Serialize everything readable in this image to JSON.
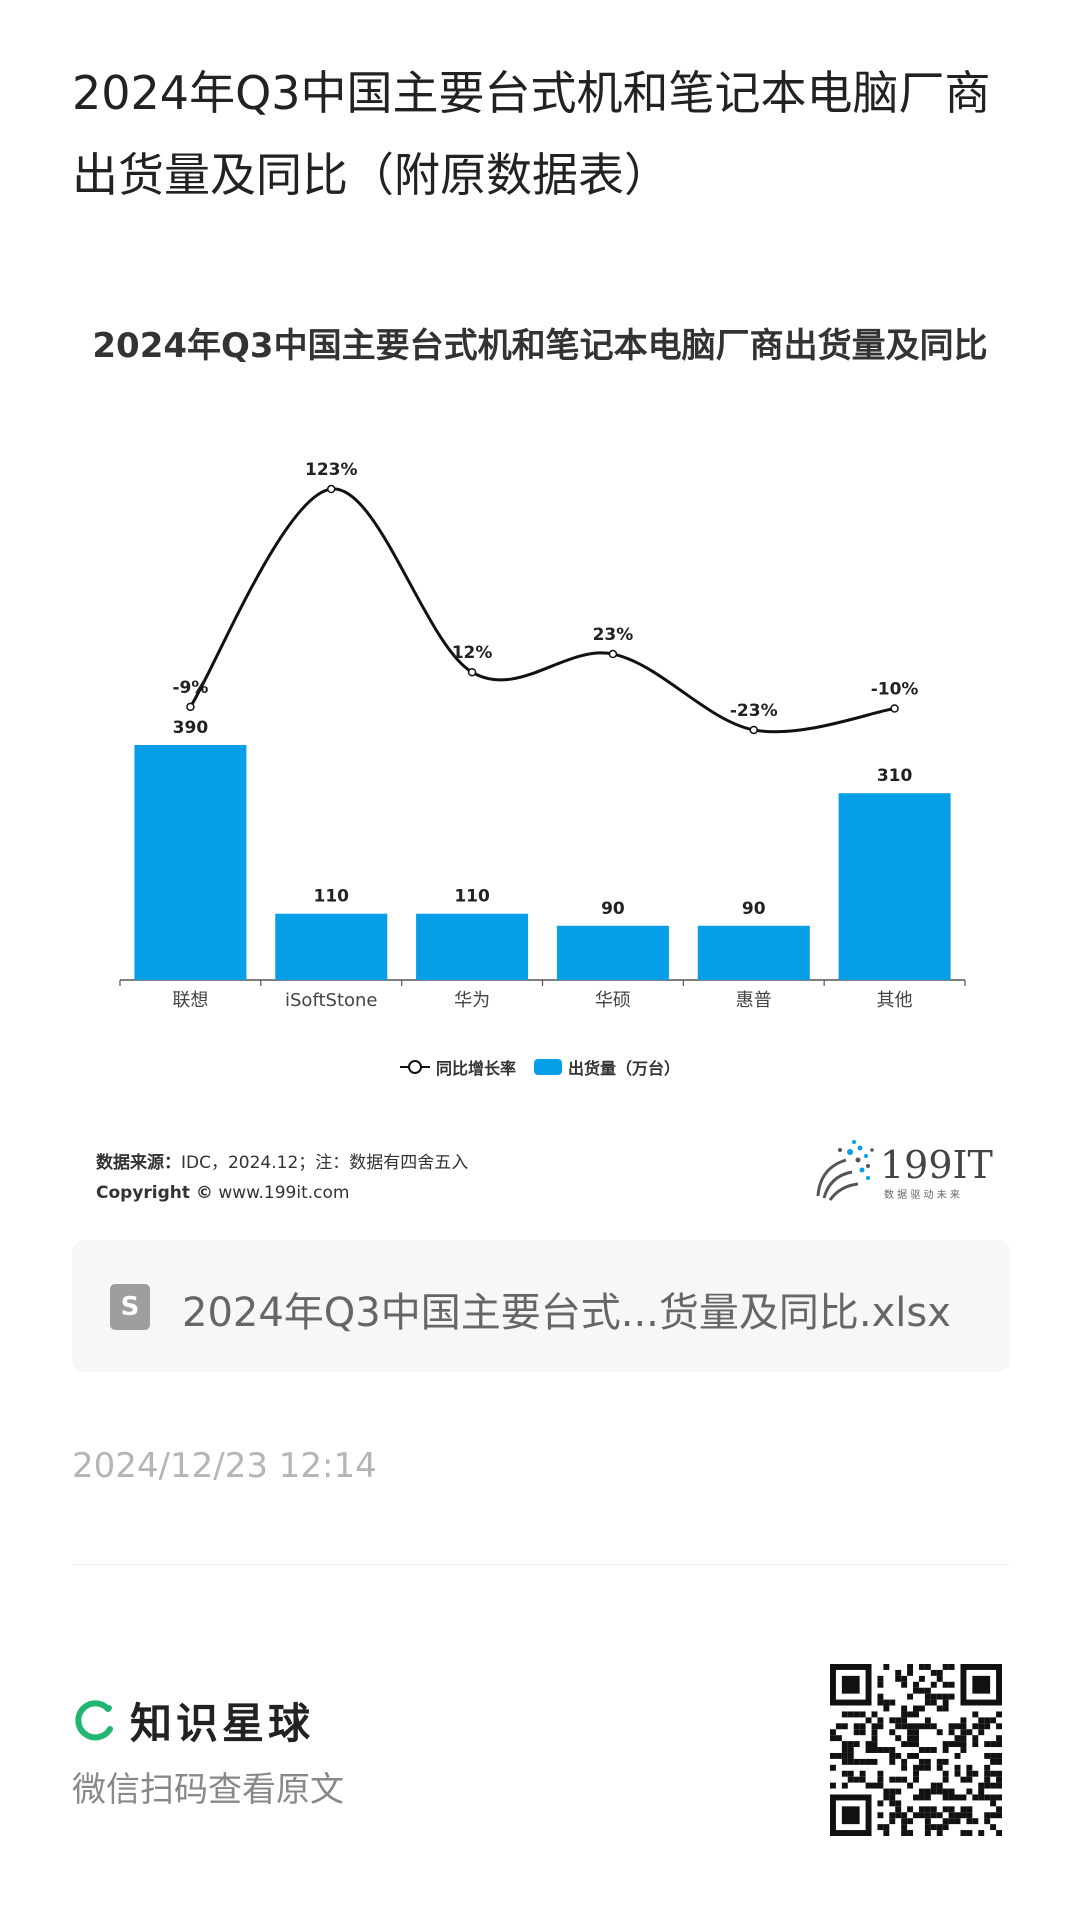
{
  "post": {
    "title": "2024年Q3中国主要台式机和笔记本电脑厂商出货量及同比（附原数据表）",
    "file_icon_letter": "S",
    "file_name": "2024年Q3中国主要台式...货量及同比.xlsx",
    "timestamp": "2024/12/23 12:14"
  },
  "chart_data": {
    "type": "bar",
    "title": "2024年Q3中国主要台式机和笔记本电脑厂商出货量及同比",
    "categories": [
      "联想",
      "iSoftStone",
      "华为",
      "华硕",
      "惠普",
      "其他"
    ],
    "series": [
      {
        "name": "出货量（万台）",
        "type": "bar",
        "values": [
          390,
          110,
          110,
          90,
          90,
          310
        ],
        "labels": [
          "390",
          "110",
          "110",
          "90",
          "90",
          "310"
        ]
      },
      {
        "name": "同比增长率",
        "type": "line",
        "values": [
          -9,
          123,
          12,
          23,
          -23,
          -10
        ],
        "labels": [
          "-9%",
          "123%",
          "12%",
          "23%",
          "-23%",
          "-10%"
        ]
      }
    ],
    "grid": false,
    "legend_position": "bottom",
    "colors": {
      "bar": "#069fe7",
      "line": "#111111"
    }
  },
  "legend": {
    "line_label": "同比增长率",
    "bar_label": "出货量（万台）"
  },
  "source": {
    "label": "数据来源：",
    "text": "IDC，2024.12；注：数据有四舍五入",
    "copyright_label": "Copyright ©",
    "copyright_url": "www.199it.com"
  },
  "logo_199": {
    "name": "199IT",
    "slogan": "数 据 驱 动 未 来",
    "icon": "dandelion-logo-icon"
  },
  "footer": {
    "brand_name": "知识星球",
    "brand_icon": "planet-ring-icon",
    "brand_color": "#22b573",
    "scan_text": "微信扫码查看原文",
    "qr_icon": "qr-code-icon"
  }
}
